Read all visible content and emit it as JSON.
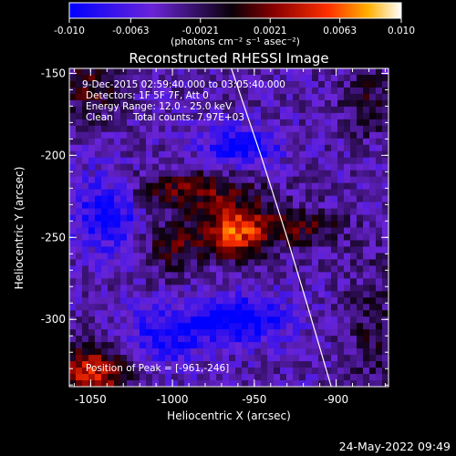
{
  "chart_data": {
    "type": "heatmap",
    "title": "Reconstructed RHESSI Image",
    "xlabel": "Heliocentric X (arcsec)",
    "ylabel": "Heliocentric Y (arcsec)",
    "xlim": [
      -1063,
      -868
    ],
    "ylim": [
      -341,
      -147
    ],
    "x_ticks": [
      "-1050",
      "-1000",
      "-950",
      "-900"
    ],
    "x_tick_values": [
      -1050,
      -1000,
      -950,
      -900
    ],
    "y_ticks": [
      "-150",
      "-200",
      "-250",
      "-300"
    ],
    "y_tick_values": [
      -150,
      -200,
      -250,
      -300
    ],
    "colorbar": {
      "range": [
        -0.01,
        0.01
      ],
      "ticks": [
        "-0.010",
        "-0.0063",
        "-0.0021",
        "0.0021",
        "0.0063",
        "0.010"
      ],
      "tick_values": [
        -0.01,
        -0.0063,
        -0.0021,
        0.0021,
        0.0063,
        0.01
      ],
      "units_label": "(photons cm⁻² s⁻¹ asec⁻²)",
      "colors": [
        "#0000ff",
        "#7b20d0",
        "#100010",
        "#8b0000",
        "#ff3000",
        "#ffb000",
        "#ffffff"
      ]
    },
    "annotations": [
      "9-Dec-2015 02:59:40.000 to 03:05:40.000",
      "Detectors: 1F 5F 7F, Att 0",
      "Energy Range: 12.0 - 25.0 keV",
      "Clean",
      "Total counts: 7.97E+03"
    ],
    "peak_label": "Position of Peak = [-961,-246]",
    "peak": [
      -961,
      -246
    ],
    "limb_line": [
      [
        -964,
        -147
      ],
      [
        -946,
        -200
      ],
      [
        -930,
        -250
      ],
      [
        -918,
        -290
      ],
      [
        -903,
        -341
      ]
    ],
    "sources": [
      {
        "x": -961,
        "y": -246,
        "sx": 16,
        "sy": 11,
        "amp": 0.01
      },
      {
        "x": -990,
        "y": -221,
        "sx": 30,
        "sy": 8,
        "amp": 0.0055
      },
      {
        "x": -1000,
        "y": -256,
        "sx": 12,
        "sy": 12,
        "amp": 0.0045
      },
      {
        "x": -918,
        "y": -244,
        "sx": 16,
        "sy": 8,
        "amp": 0.0045
      },
      {
        "x": -1050,
        "y": -158,
        "sx": 14,
        "sy": 14,
        "amp": 0.0045
      },
      {
        "x": -1050,
        "y": -333,
        "sx": 15,
        "sy": 13,
        "amp": 0.0085
      },
      {
        "x": -880,
        "y": -168,
        "sx": 14,
        "sy": 16,
        "amp": 0.003
      },
      {
        "x": -878,
        "y": -308,
        "sx": 14,
        "sy": 30,
        "amp": 0.0025
      }
    ],
    "negative_lobes": [
      {
        "x": -958,
        "y": -195,
        "sx": 16,
        "sy": 8,
        "amp": -0.006
      },
      {
        "x": -1040,
        "y": -235,
        "sx": 14,
        "sy": 16,
        "amp": -0.006
      },
      {
        "x": -960,
        "y": -300,
        "sx": 20,
        "sy": 10,
        "amp": -0.007
      },
      {
        "x": -1005,
        "y": -310,
        "sx": 16,
        "sy": 12,
        "amp": -0.005
      }
    ]
  },
  "timestamp": "24-May-2022 09:49"
}
